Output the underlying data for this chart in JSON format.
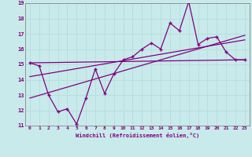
{
  "xlabel": "Windchill (Refroidissement éolien,°C)",
  "bg_color": "#c8eaea",
  "line_color": "#800080",
  "grid_color": "#b8dede",
  "spine_color": "#888888",
  "xlim": [
    -0.5,
    23.5
  ],
  "ylim": [
    11,
    19
  ],
  "xticks": [
    0,
    1,
    2,
    3,
    4,
    5,
    6,
    7,
    8,
    9,
    10,
    11,
    12,
    13,
    14,
    15,
    16,
    17,
    18,
    19,
    20,
    21,
    22,
    23
  ],
  "yticks": [
    11,
    12,
    13,
    14,
    15,
    16,
    17,
    18,
    19
  ],
  "data_x": [
    0,
    1,
    2,
    3,
    4,
    5,
    6,
    7,
    8,
    9,
    10,
    11,
    12,
    13,
    14,
    15,
    16,
    17,
    18,
    19,
    20,
    21,
    22,
    23
  ],
  "data_y": [
    15.1,
    14.9,
    13.0,
    11.9,
    12.1,
    11.1,
    12.8,
    14.7,
    13.1,
    14.4,
    15.3,
    15.5,
    16.0,
    16.4,
    16.0,
    17.7,
    17.2,
    19.1,
    16.3,
    16.7,
    16.8,
    15.8,
    15.3,
    15.3
  ],
  "trend1_x": [
    0,
    23
  ],
  "trend1_y": [
    15.1,
    15.3
  ],
  "trend2_x": [
    0,
    23
  ],
  "trend2_y": [
    12.8,
    16.9
  ],
  "trend3_x": [
    0,
    23
  ],
  "trend3_y": [
    14.2,
    16.6
  ]
}
